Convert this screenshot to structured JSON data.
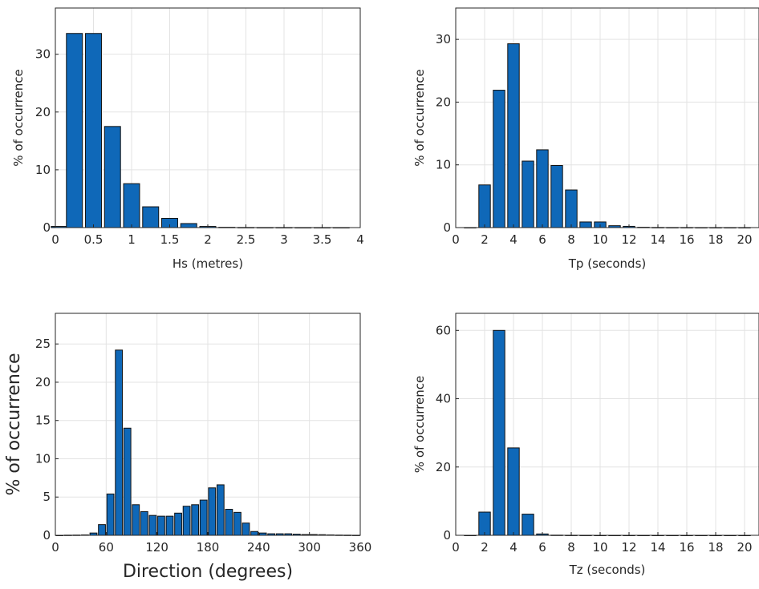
{
  "chart_data": [
    {
      "type": "bar",
      "xlabel": "Hs (metres)",
      "ylabel": "% of occurrence",
      "xlim": [
        0,
        4
      ],
      "ylim": [
        0,
        38
      ],
      "xticks": [
        "0",
        "0.5",
        "1",
        "1.5",
        "2",
        "2.5",
        "3",
        "3.5",
        "4"
      ],
      "yticks": [
        "0",
        "10",
        "20",
        "30"
      ],
      "grid": true,
      "bar_color": "#0f68b8",
      "x": [
        0.05,
        0.25,
        0.5,
        0.75,
        1.0,
        1.25,
        1.5,
        1.75,
        2.0,
        2.25,
        2.5,
        2.75,
        3.0,
        3.25,
        3.5,
        3.75
      ],
      "values": [
        0.2,
        33.6,
        33.6,
        17.5,
        7.6,
        3.6,
        1.6,
        0.7,
        0.2,
        0.05,
        0.02,
        0.01,
        0.01,
        0.0,
        0.0,
        0.0
      ]
    },
    {
      "type": "bar",
      "xlabel": "Tp (seconds)",
      "ylabel": "% of occurrence",
      "xlim": [
        0,
        21
      ],
      "ylim": [
        0,
        35
      ],
      "xticks": [
        "0",
        "2",
        "4",
        "6",
        "8",
        "10",
        "12",
        "14",
        "16",
        "18",
        "20"
      ],
      "yticks": [
        "0",
        "10",
        "20",
        "30"
      ],
      "grid": true,
      "bar_color": "#0f68b8",
      "x": [
        1,
        2,
        3,
        4,
        5,
        6,
        7,
        8,
        9,
        10,
        11,
        12,
        13,
        14,
        15,
        16,
        17,
        18,
        19,
        20
      ],
      "values": [
        0.0,
        6.8,
        21.9,
        29.3,
        10.6,
        12.4,
        9.9,
        6.0,
        0.9,
        0.9,
        0.3,
        0.2,
        0.05,
        0.02,
        0.01,
        0.01,
        0.0,
        0.0,
        0.0,
        0.0
      ]
    },
    {
      "type": "bar",
      "xlabel": "Direction (degrees)",
      "ylabel": "% of occurrence",
      "xlim": [
        0,
        360
      ],
      "ylim": [
        0,
        29
      ],
      "xticks": [
        "0",
        "60",
        "120",
        "180",
        "240",
        "300",
        "360"
      ],
      "yticks": [
        "0",
        "5",
        "10",
        "15",
        "20",
        "25"
      ],
      "grid": true,
      "bar_color": "#0f68b8",
      "x": [
        5,
        15,
        25,
        35,
        45,
        55,
        65,
        75,
        85,
        95,
        105,
        115,
        125,
        135,
        145,
        155,
        165,
        175,
        185,
        195,
        205,
        215,
        225,
        235,
        245,
        255,
        265,
        275,
        285,
        295,
        305,
        315,
        325,
        335,
        345,
        355
      ],
      "values": [
        0.0,
        0.02,
        0.03,
        0.05,
        0.3,
        1.4,
        5.4,
        24.2,
        14.0,
        4.0,
        3.1,
        2.6,
        2.5,
        2.5,
        2.9,
        3.8,
        4.0,
        4.6,
        6.2,
        6.6,
        3.4,
        3.0,
        1.6,
        0.5,
        0.3,
        0.2,
        0.2,
        0.2,
        0.15,
        0.1,
        0.1,
        0.08,
        0.05,
        0.03,
        0.02,
        0.01
      ]
    },
    {
      "type": "bar",
      "xlabel": "Tz (seconds)",
      "ylabel": "% of occurrence",
      "xlim": [
        0,
        21
      ],
      "ylim": [
        0,
        65
      ],
      "xticks": [
        "0",
        "2",
        "4",
        "6",
        "8",
        "10",
        "12",
        "14",
        "16",
        "18",
        "20"
      ],
      "yticks": [
        "0",
        "20",
        "40",
        "60"
      ],
      "grid": true,
      "bar_color": "#0f68b8",
      "x": [
        1,
        2,
        3,
        4,
        5,
        6,
        7,
        8,
        9,
        10,
        11,
        12,
        13,
        14,
        15,
        16,
        17,
        18,
        19,
        20
      ],
      "values": [
        0.0,
        6.8,
        60.0,
        25.6,
        6.2,
        0.4,
        0.05,
        0.02,
        0.01,
        0.0,
        0.0,
        0.0,
        0.0,
        0.0,
        0.0,
        0.0,
        0.0,
        0.0,
        0.0,
        0.0
      ]
    }
  ]
}
